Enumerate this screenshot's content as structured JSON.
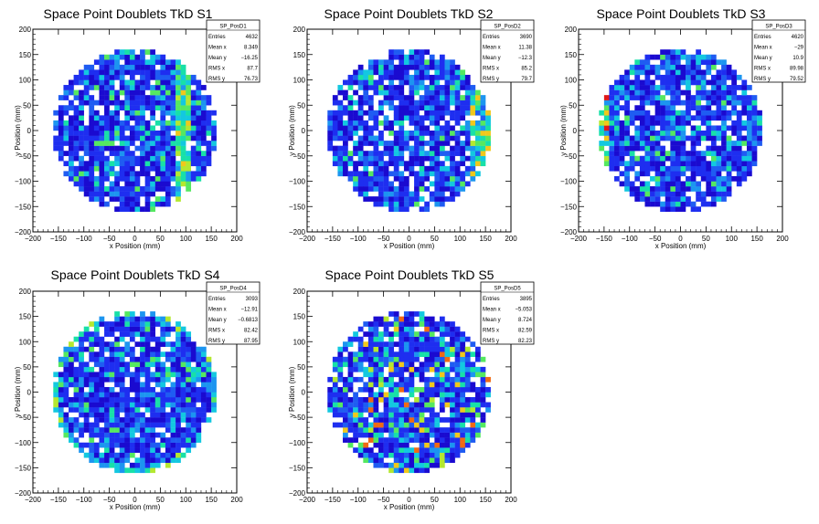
{
  "chart_data": [
    {
      "type": "heatmap",
      "title": "Space Point Doublets TkD S1",
      "xlabel": "x Position (mm)",
      "ylabel": "y Position (mm)",
      "xlim": [
        -200,
        200
      ],
      "ylim": [
        -200,
        200
      ],
      "x_ticks": [
        -200,
        -150,
        -100,
        -50,
        0,
        50,
        100,
        150,
        200
      ],
      "y_ticks": [
        -200,
        -150,
        -100,
        -50,
        0,
        50,
        100,
        150,
        200
      ],
      "heatmap": {
        "radius_mm": 160,
        "bin_mm": 10,
        "band": "vertical",
        "band_pos_mm": 95,
        "seed": 11
      },
      "stats": {
        "name": "SP_PosD1",
        "entries": "4632",
        "mean_x": "8.349",
        "mean_y": "-16.25",
        "rms_x": "87.7",
        "rms_y": "76.73"
      }
    },
    {
      "type": "heatmap",
      "title": "Space Point Doublets TkD S2",
      "xlabel": "x Position (mm)",
      "ylabel": "y Position (mm)",
      "xlim": [
        -200,
        200
      ],
      "ylim": [
        -200,
        200
      ],
      "x_ticks": [
        -200,
        -150,
        -100,
        -50,
        0,
        50,
        100,
        150,
        200
      ],
      "y_ticks": [
        -200,
        -150,
        -100,
        -50,
        0,
        50,
        100,
        150,
        200
      ],
      "heatmap": {
        "radius_mm": 160,
        "bin_mm": 10,
        "band": "right",
        "band_pos_mm": 120,
        "seed": 23
      },
      "stats": {
        "name": "SP_PosD2",
        "entries": "3690",
        "mean_x": "11.38",
        "mean_y": "-12.3",
        "rms_x": "85.2",
        "rms_y": "79.7"
      }
    },
    {
      "type": "heatmap",
      "title": "Space Point Doublets TkD S3",
      "xlabel": "x Position (mm)",
      "ylabel": "y Position (mm)",
      "xlim": [
        -200,
        200
      ],
      "ylim": [
        -200,
        200
      ],
      "x_ticks": [
        -200,
        -150,
        -100,
        -50,
        0,
        50,
        100,
        150,
        200
      ],
      "y_ticks": [
        -200,
        -150,
        -100,
        -50,
        0,
        50,
        100,
        150,
        200
      ],
      "heatmap": {
        "radius_mm": 160,
        "bin_mm": 10,
        "band": "left",
        "band_pos_mm": -140,
        "seed": 37
      },
      "stats": {
        "name": "SP_PosD3",
        "entries": "4620",
        "mean_x": "-29",
        "mean_y": "10.9",
        "rms_x": "89.98",
        "rms_y": "79.52"
      }
    },
    {
      "type": "heatmap",
      "title": "Space Point Doublets TkD S4",
      "xlabel": "x Position (mm)",
      "ylabel": "y Position (mm)",
      "xlim": [
        -200,
        200
      ],
      "ylim": [
        -200,
        200
      ],
      "x_ticks": [
        -200,
        -150,
        -100,
        -50,
        0,
        50,
        100,
        150,
        200
      ],
      "y_ticks": [
        -200,
        -150,
        -100,
        -50,
        0,
        50,
        100,
        150,
        200
      ],
      "heatmap": {
        "radius_mm": 160,
        "bin_mm": 10,
        "band": "rim",
        "band_pos_mm": 150,
        "seed": 41
      },
      "stats": {
        "name": "SP_PosD4",
        "entries": "3093",
        "mean_x": "-12.91",
        "mean_y": "-0.6813",
        "rms_x": "82.42",
        "rms_y": "87.95"
      }
    },
    {
      "type": "heatmap",
      "title": "Space Point Doublets TkD S5",
      "xlabel": "x Position (mm)",
      "ylabel": "y Position (mm)",
      "xlim": [
        -200,
        200
      ],
      "ylim": [
        -200,
        200
      ],
      "x_ticks": [
        -200,
        -150,
        -100,
        -50,
        0,
        50,
        100,
        150,
        200
      ],
      "y_ticks": [
        -200,
        -150,
        -100,
        -50,
        0,
        50,
        100,
        150,
        200
      ],
      "heatmap": {
        "radius_mm": 160,
        "bin_mm": 10,
        "band": "scatter",
        "band_pos_mm": -60,
        "seed": 53
      },
      "stats": {
        "name": "SP_PosD5",
        "entries": "3895",
        "mean_x": "-5.053",
        "mean_y": "8.724",
        "rms_x": "82.59",
        "rms_y": "82.23"
      }
    }
  ],
  "colors": {
    "palette": [
      "#1a0ad0",
      "#1e2ef0",
      "#1f5cf2",
      "#1c95f0",
      "#13c8e0",
      "#18e0a8",
      "#55e860",
      "#b4e830",
      "#f0c81c",
      "#f06a14",
      "#e01818"
    ],
    "frame": "#000000",
    "background": "#ffffff"
  },
  "stats_labels": {
    "entries": "Entries",
    "mean_x": "Mean x",
    "mean_y": "Mean y",
    "rms_x": "RMS x",
    "rms_y": "RMS y"
  }
}
